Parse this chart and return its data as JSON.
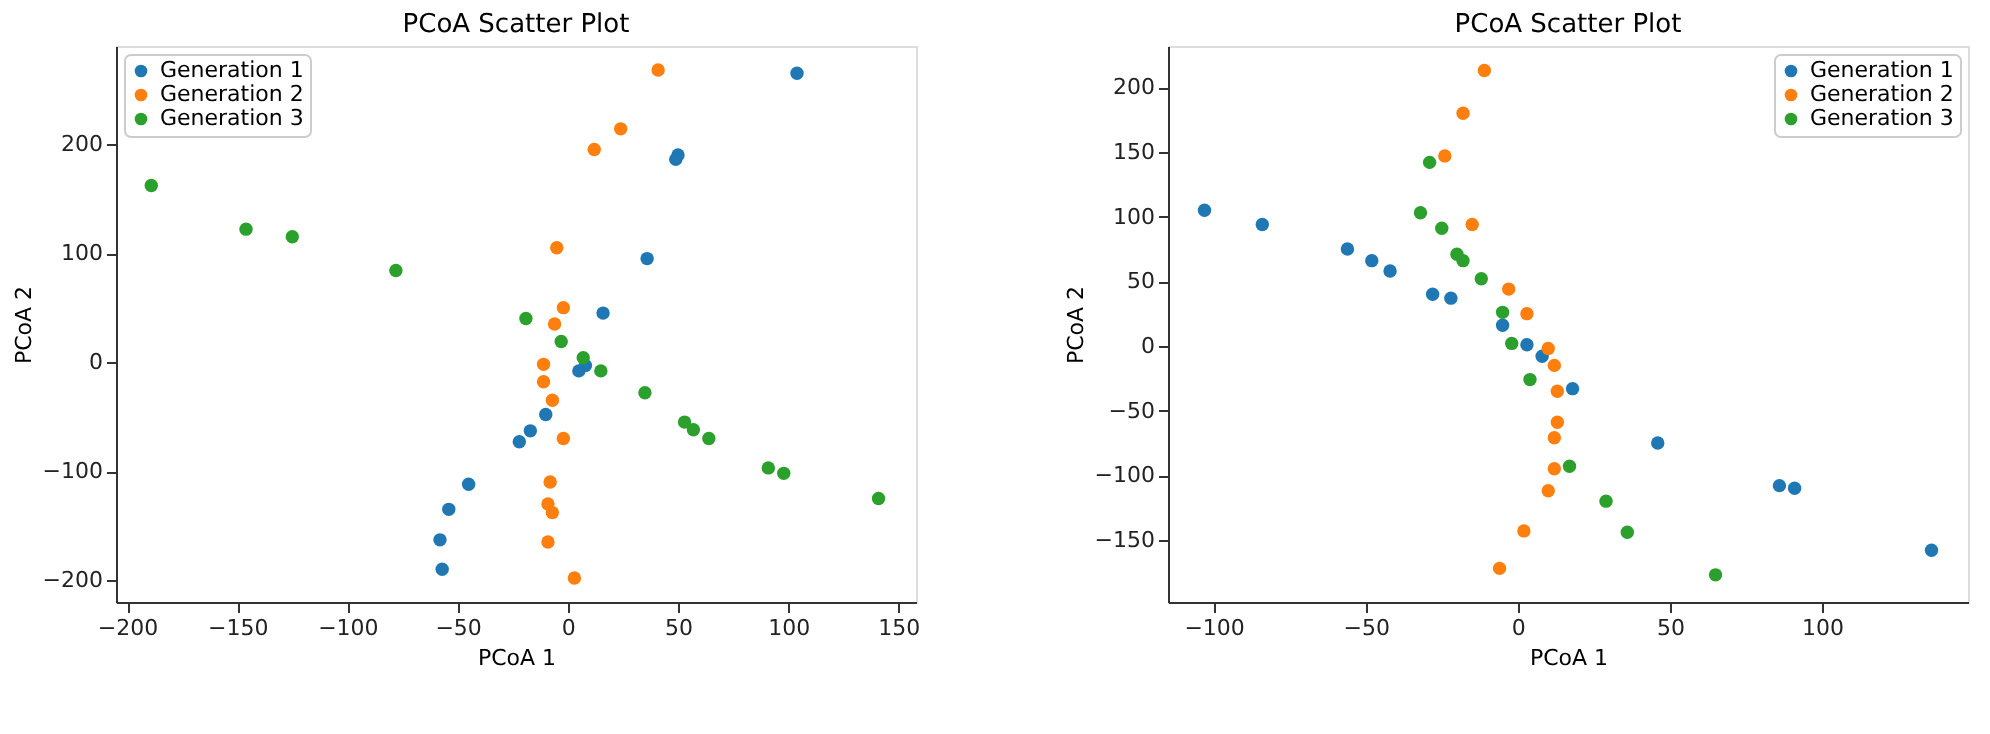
{
  "chart_data": [
    {
      "type": "scatter",
      "title": "PCoA Scatter Plot",
      "xlabel": "PCoA 1",
      "ylabel": "PCoA 2",
      "xlim": [
        -205,
        158
      ],
      "ylim": [
        -220,
        290
      ],
      "xticks": [
        -200,
        -150,
        -100,
        -50,
        0,
        50,
        100,
        150
      ],
      "yticks": [
        -200,
        -100,
        0,
        100,
        200
      ],
      "grid": false,
      "legend": "top left",
      "marker": "circle",
      "series": [
        {
          "name": "Generation 1",
          "color": "#1f77b4",
          "x": [
            104,
            50,
            49,
            36,
            16,
            8,
            5,
            -10,
            -17,
            -22,
            -45,
            -54,
            -58,
            -57
          ],
          "values": [
            265,
            190,
            186,
            95,
            45,
            -3,
            -8,
            -48,
            -63,
            -73,
            -112,
            -135,
            -163,
            -190
          ]
        },
        {
          "name": "Generation 2",
          "color": "#ff7f0e",
          "x": [
            41,
            24,
            12,
            -5,
            -2,
            -6,
            -11,
            -11,
            -7,
            -2,
            -8,
            -9,
            -7,
            -9,
            3
          ],
          "values": [
            268,
            214,
            195,
            105,
            50,
            35,
            -2,
            -18,
            -35,
            -70,
            -110,
            -130,
            -138,
            -165,
            -198
          ]
        },
        {
          "name": "Generation 3",
          "color": "#2ca02c",
          "x": [
            -189,
            -146,
            -125,
            -78,
            -19,
            -3,
            7,
            15,
            35,
            53,
            57,
            64,
            91,
            98,
            141
          ],
          "values": [
            162,
            122,
            115,
            84,
            40,
            19,
            4,
            -8,
            -28,
            -55,
            -62,
            -70,
            -97,
            -102,
            -125
          ]
        }
      ]
    },
    {
      "type": "scatter",
      "title": "PCoA Scatter Plot",
      "xlabel": "PCoA 1",
      "ylabel": "PCoA 2",
      "xlim": [
        -115,
        148
      ],
      "ylim": [
        -198,
        232
      ],
      "xticks": [
        -100,
        -50,
        0,
        50,
        100
      ],
      "yticks": [
        -150,
        -100,
        -50,
        0,
        50,
        100,
        150,
        200
      ],
      "grid": false,
      "legend": "top right",
      "marker": "circle",
      "series": [
        {
          "name": "Generation 1",
          "color": "#1f77b4",
          "x": [
            -103,
            -84,
            -56,
            -48,
            -42,
            -28,
            -22,
            -5,
            3,
            8,
            18,
            46,
            86,
            91,
            136
          ],
          "values": [
            105,
            94,
            75,
            66,
            58,
            40,
            37,
            16,
            1,
            -8,
            -33,
            -75,
            -108,
            -110,
            -158
          ]
        },
        {
          "name": "Generation 2",
          "color": "#ff7f0e",
          "x": [
            -11,
            -18,
            -24,
            -15,
            -3,
            3,
            10,
            12,
            13,
            13,
            12,
            12,
            10,
            2,
            -6
          ],
          "values": [
            213,
            180,
            147,
            94,
            44,
            25,
            -2,
            -15,
            -35,
            -59,
            -71,
            -95,
            -112,
            -143,
            -172
          ]
        },
        {
          "name": "Generation 3",
          "color": "#2ca02c",
          "x": [
            -29,
            -32,
            -25,
            -20,
            -18,
            -12,
            -5,
            -2,
            4,
            17,
            29,
            36,
            65
          ],
          "values": [
            142,
            103,
            91,
            71,
            66,
            52,
            26,
            2,
            -26,
            -93,
            -120,
            -144,
            -177
          ]
        }
      ]
    }
  ]
}
